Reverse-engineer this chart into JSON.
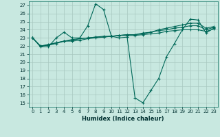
{
  "xlabel": "Humidex (Indice chaleur)",
  "bg_color": "#c8e8e0",
  "grid_color": "#a8c8c0",
  "line_color": "#006858",
  "xlim": [
    -0.5,
    23.5
  ],
  "ylim": [
    14.5,
    27.5
  ],
  "yticks": [
    15,
    16,
    17,
    18,
    19,
    20,
    21,
    22,
    23,
    24,
    25,
    26,
    27
  ],
  "xticks": [
    0,
    1,
    2,
    3,
    4,
    5,
    6,
    7,
    8,
    9,
    10,
    11,
    12,
    13,
    14,
    15,
    16,
    17,
    18,
    19,
    20,
    21,
    22,
    23
  ],
  "line1_x": [
    0,
    1,
    2,
    3,
    4,
    5,
    6,
    7,
    8,
    9,
    10,
    11,
    12,
    13,
    14,
    15,
    16,
    17,
    18,
    19,
    20,
    21,
    22,
    23
  ],
  "line1_y": [
    23.0,
    21.9,
    21.9,
    23.0,
    23.7,
    23.0,
    23.0,
    24.5,
    27.2,
    26.5,
    23.2,
    23.0,
    23.1,
    15.6,
    15.0,
    16.5,
    18.0,
    20.7,
    22.3,
    24.0,
    25.3,
    25.2,
    23.6,
    24.2
  ],
  "line2_x": [
    0,
    1,
    2,
    3,
    4,
    5,
    6,
    7,
    8,
    9,
    10,
    11,
    12,
    13,
    14,
    15,
    16,
    17,
    18,
    19,
    20,
    21,
    22,
    23
  ],
  "line2_y": [
    23.0,
    22.0,
    22.1,
    22.3,
    22.6,
    22.6,
    22.7,
    22.9,
    23.0,
    23.1,
    23.2,
    23.3,
    23.3,
    23.3,
    23.4,
    23.5,
    23.6,
    23.8,
    23.9,
    24.0,
    24.0,
    24.0,
    23.8,
    24.1
  ],
  "line3_x": [
    0,
    1,
    2,
    3,
    4,
    5,
    6,
    7,
    8,
    9,
    10,
    11,
    12,
    13,
    14,
    15,
    16,
    17,
    18,
    19,
    20,
    21,
    22,
    23
  ],
  "line3_y": [
    23.0,
    22.0,
    22.2,
    22.4,
    22.6,
    22.8,
    22.9,
    23.0,
    23.1,
    23.2,
    23.2,
    23.3,
    23.4,
    23.4,
    23.6,
    23.7,
    23.9,
    24.0,
    24.2,
    24.3,
    24.5,
    24.5,
    24.0,
    24.3
  ],
  "line4_x": [
    0,
    1,
    2,
    3,
    4,
    5,
    6,
    7,
    8,
    9,
    10,
    11,
    12,
    13,
    14,
    15,
    16,
    17,
    18,
    19,
    20,
    21,
    22,
    23
  ],
  "line4_y": [
    23.0,
    22.0,
    22.1,
    22.4,
    22.6,
    22.7,
    22.9,
    23.0,
    23.1,
    23.1,
    23.2,
    23.3,
    23.4,
    23.4,
    23.5,
    23.7,
    24.0,
    24.2,
    24.4,
    24.6,
    24.8,
    24.8,
    24.2,
    24.4
  ]
}
